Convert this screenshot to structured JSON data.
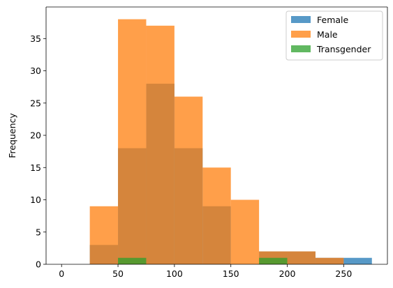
{
  "chart_data": {
    "type": "histogram",
    "xlabel": "",
    "ylabel": "Frequency",
    "xlim": [
      -13.75,
      288.75
    ],
    "ylim": [
      0,
      39.9
    ],
    "xticks": [
      0,
      50,
      100,
      150,
      200,
      250
    ],
    "yticks": [
      0,
      5,
      10,
      15,
      20,
      25,
      30,
      35
    ],
    "bin_edges": [
      25,
      50,
      75,
      100,
      125,
      150,
      175,
      200,
      225,
      250,
      275
    ],
    "grid": false,
    "legend_position": "top-right",
    "series": [
      {
        "name": "Female",
        "color": "#1f77b4",
        "opacity": 0.75,
        "values": [
          3,
          18,
          28,
          18,
          9,
          0,
          2,
          2,
          1,
          1
        ]
      },
      {
        "name": "Male",
        "color": "#ff7f0e",
        "opacity": 0.75,
        "values": [
          9,
          38,
          37,
          26,
          15,
          10,
          2,
          2,
          1,
          0
        ]
      },
      {
        "name": "Transgender",
        "color": "#2ca02c",
        "opacity": 0.75,
        "values": [
          0,
          1,
          0,
          0,
          0,
          0,
          1,
          0,
          0,
          0
        ]
      }
    ]
  }
}
